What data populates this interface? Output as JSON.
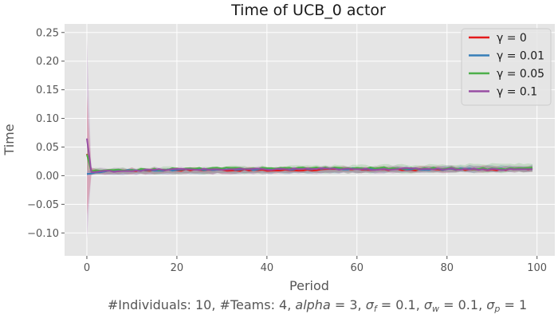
{
  "chart_data": {
    "type": "line",
    "title": "Time of UCB_0 actor",
    "xlabel": "Period",
    "ylabel": "Time",
    "xlim": [
      -4.95,
      103.95
    ],
    "ylim": [
      -0.14,
      0.265
    ],
    "x_ticks": [
      0,
      20,
      40,
      60,
      80,
      100
    ],
    "y_ticks": [
      -0.1,
      -0.05,
      0.0,
      0.05,
      0.1,
      0.15,
      0.2,
      0.25
    ],
    "y_tick_labels": [
      "−0.10",
      "−0.05",
      "0.00",
      "0.05",
      "0.10",
      "0.15",
      "0.20",
      "0.25"
    ],
    "grid": true,
    "legend_position": "top-right",
    "footer_note": "#Individuals: 10,  #Teams: 4,  alpha = 3,  σ_f = 0.1,  σ_w = 0.1,  σ_p = 1",
    "footer_parts": {
      "prefix": "#Individuals: 10,  #Teams: 4,  ",
      "alpha_name": "alpha",
      "alpha_eq": " = 3,  ",
      "sigma": "σ",
      "sub_f": "f",
      "eq_f": " = 0.1,  ",
      "sub_w": "w",
      "eq_w": " = 0.1,  ",
      "sub_p": "p",
      "eq_p": " = 1"
    },
    "series": [
      {
        "name": "γ =  0",
        "gamma": "0",
        "color": "#e41a1c",
        "points": [
          [
            0,
            0.038
          ],
          [
            1,
            0.007
          ],
          [
            5,
            0.008
          ],
          [
            10,
            0.009
          ],
          [
            20,
            0.01
          ],
          [
            30,
            0.01
          ],
          [
            40,
            0.009
          ],
          [
            50,
            0.01
          ],
          [
            60,
            0.011
          ],
          [
            70,
            0.01
          ],
          [
            80,
            0.011
          ],
          [
            90,
            0.01
          ],
          [
            99,
            0.012
          ]
        ],
        "band": [
          [
            0,
            -0.07,
            0.14
          ],
          [
            1,
            0.003,
            0.012
          ],
          [
            99,
            0.007,
            0.017
          ]
        ]
      },
      {
        "name": "γ =  0.01",
        "gamma": "0.01",
        "color": "#377eb8",
        "points": [
          [
            0,
            0.003
          ],
          [
            1,
            0.005
          ],
          [
            5,
            0.008
          ],
          [
            10,
            0.009
          ],
          [
            20,
            0.01
          ],
          [
            30,
            0.011
          ],
          [
            40,
            0.011
          ],
          [
            50,
            0.012
          ],
          [
            60,
            0.012
          ],
          [
            70,
            0.012
          ],
          [
            80,
            0.011
          ],
          [
            90,
            0.012
          ],
          [
            99,
            0.012
          ]
        ],
        "band": [
          [
            0,
            0.0,
            0.008
          ],
          [
            1,
            0.002,
            0.01
          ],
          [
            99,
            0.007,
            0.018
          ]
        ]
      },
      {
        "name": "γ =  0.05",
        "gamma": "0.05",
        "color": "#4daf4a",
        "points": [
          [
            0,
            0.037
          ],
          [
            1,
            0.008
          ],
          [
            5,
            0.009
          ],
          [
            10,
            0.01
          ],
          [
            20,
            0.012
          ],
          [
            30,
            0.013
          ],
          [
            40,
            0.013
          ],
          [
            50,
            0.014
          ],
          [
            60,
            0.013
          ],
          [
            65,
            0.014
          ],
          [
            70,
            0.012
          ],
          [
            80,
            0.013
          ],
          [
            90,
            0.012
          ],
          [
            99,
            0.013
          ]
        ],
        "band": [
          [
            0,
            0.01,
            0.065
          ],
          [
            1,
            0.003,
            0.013
          ],
          [
            99,
            0.006,
            0.021
          ]
        ]
      },
      {
        "name": "γ =  0.1",
        "gamma": "0.1",
        "color": "#984ea3",
        "points": [
          [
            0,
            0.065
          ],
          [
            1,
            0.006
          ],
          [
            5,
            0.008
          ],
          [
            10,
            0.009
          ],
          [
            20,
            0.011
          ],
          [
            30,
            0.011
          ],
          [
            40,
            0.011
          ],
          [
            50,
            0.012
          ],
          [
            60,
            0.011
          ],
          [
            70,
            0.012
          ],
          [
            80,
            0.012
          ],
          [
            90,
            0.011
          ],
          [
            99,
            0.011
          ]
        ],
        "band": [
          [
            0,
            -0.11,
            0.24
          ],
          [
            1,
            0.002,
            0.013
          ],
          [
            99,
            0.006,
            0.017
          ]
        ]
      }
    ]
  }
}
